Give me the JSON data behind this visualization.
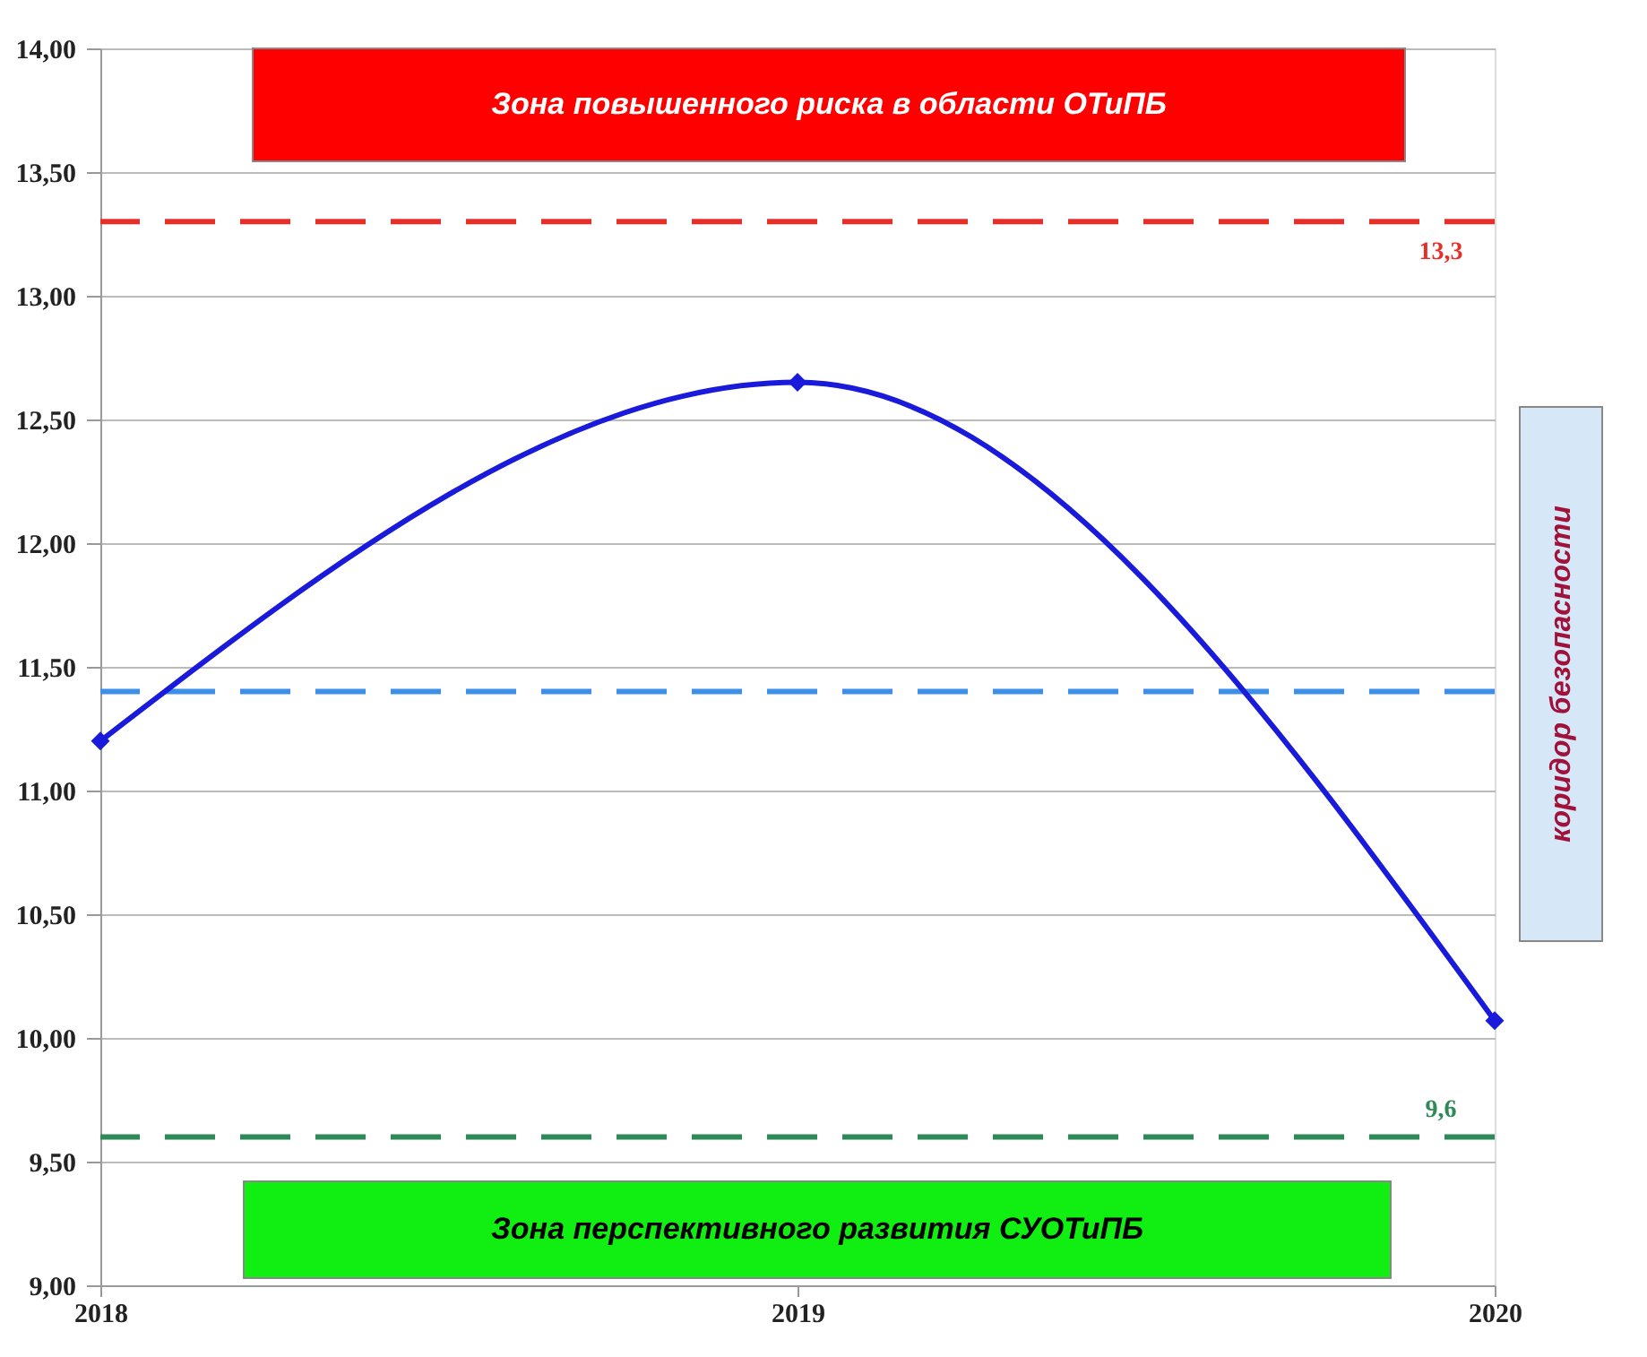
{
  "chart_data": {
    "type": "line",
    "x": [
      2018,
      2019,
      2020
    ],
    "series": [
      {
        "color": "#1a1adb",
        "values": [
          11.2,
          12.65,
          10.07
        ]
      }
    ],
    "marker": "diamond",
    "line_style": "solid",
    "xlim": [
      2018,
      2020
    ],
    "xticks": [
      2018,
      2019,
      2020
    ],
    "ylim": [
      9,
      14
    ],
    "yticks": [
      {
        "value": 9,
        "label": "9,00"
      },
      {
        "value": 9.5,
        "label": "9,50"
      },
      {
        "value": 10,
        "label": "10,00"
      },
      {
        "value": 10.5,
        "label": "10,50"
      },
      {
        "value": 11,
        "label": "11,00"
      },
      {
        "value": 11.5,
        "label": "11,50"
      },
      {
        "value": 12,
        "label": "12,00"
      },
      {
        "value": 12.5,
        "label": "12,50"
      },
      {
        "value": 13,
        "label": "13,00"
      },
      {
        "value": 13.5,
        "label": "13,50"
      },
      {
        "value": 14,
        "label": "14,00"
      }
    ],
    "grid": "y",
    "ref_lines": [
      {
        "axis": "y",
        "value": 13.3,
        "label": "13,3",
        "color": "#e5302a",
        "line_style": "dashed"
      },
      {
        "axis": "y",
        "value": 11.4,
        "color": "#3d8fe8",
        "line_style": "dashed"
      },
      {
        "axis": "y",
        "value": 9.6,
        "label": "9,6",
        "color": "#2e8b57",
        "line_style": "dashed"
      }
    ],
    "annotations": [
      "Зона повышенного риска в области ОТиПБ",
      "Зона перспективного развития СУОТиПБ",
      "коридор безопасности"
    ]
  }
}
